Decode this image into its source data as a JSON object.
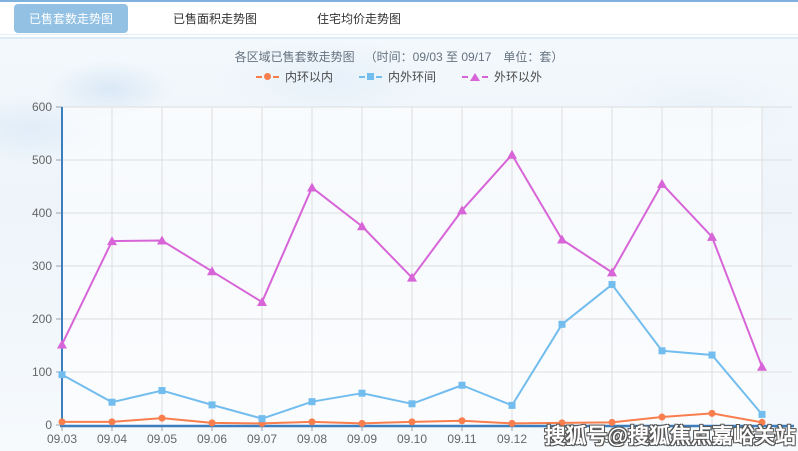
{
  "tabs": [
    {
      "label": "已售套数走势图",
      "active": true
    },
    {
      "label": "已售面积走势图",
      "active": false
    },
    {
      "label": "住宅均价走势图",
      "active": false
    }
  ],
  "header": {
    "title": "各区域已售套数走势图",
    "params": "（时间：09/03 至 09/17　单位：套）"
  },
  "chart_data": {
    "type": "line",
    "title": "各区域已售套数走势图",
    "time_range": "09/03 至 09/17",
    "unit": "套",
    "xlabel": "",
    "ylabel": "",
    "ylim": [
      0,
      600
    ],
    "ytick_step": 100,
    "yticks": [
      0,
      100,
      200,
      300,
      400,
      500,
      600
    ],
    "grid": true,
    "legend_position": "top",
    "categories": [
      "09.03",
      "09.04",
      "09.05",
      "09.06",
      "09.07",
      "09.08",
      "09.09",
      "09.10",
      "09.11",
      "09.12",
      "09.13",
      "09.14",
      "09.15",
      "09.16",
      "09.17"
    ],
    "series": [
      {
        "name": "内环以内",
        "color": "#f97e4d",
        "symbol": "circle",
        "values": [
          6,
          6,
          13,
          4,
          3,
          6,
          3,
          6,
          8,
          3,
          4,
          5,
          15,
          22,
          5
        ]
      },
      {
        "name": "内外环间",
        "color": "#72bdee",
        "symbol": "square",
        "values": [
          95,
          43,
          65,
          38,
          12,
          44,
          60,
          40,
          75,
          37,
          190,
          265,
          140,
          132,
          20
        ]
      },
      {
        "name": "外环以外",
        "color": "#d765d8",
        "symbol": "triangle",
        "values": [
          152,
          347,
          348,
          290,
          232,
          448,
          375,
          278,
          405,
          510,
          350,
          288,
          455,
          355,
          110
        ]
      }
    ],
    "axis_color": "#3c7dbd",
    "grid_color": "#dedede",
    "tick_label_color": "#666666"
  },
  "watermark": {
    "text": "搜狐号@搜狐焦点嘉峪关站"
  }
}
